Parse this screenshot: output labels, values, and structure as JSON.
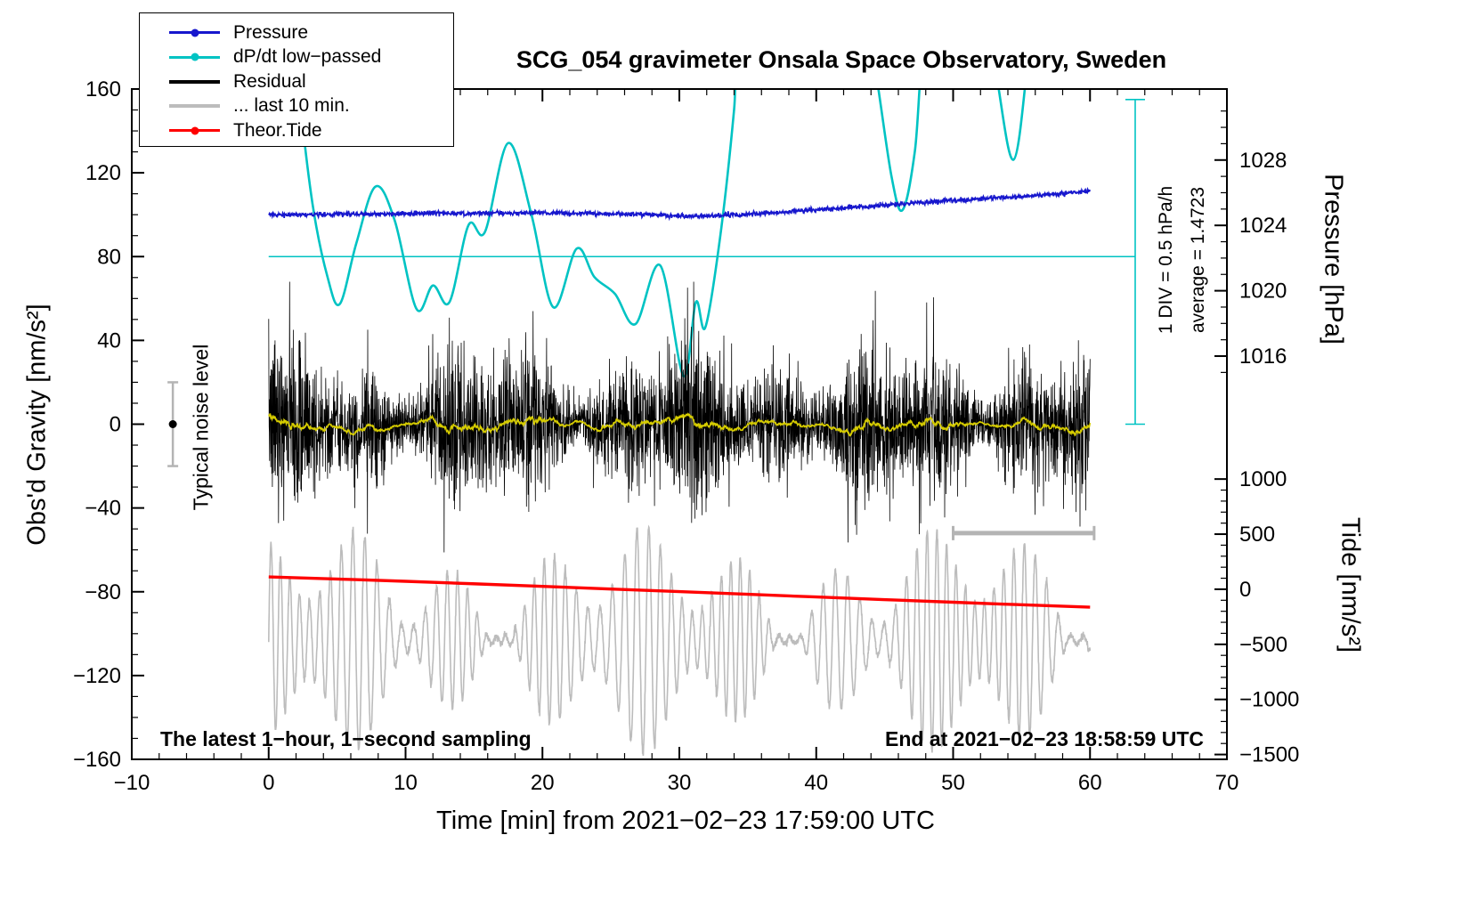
{
  "title": "SCG_054 gravimeter Onsala Space Observatory, Sweden",
  "legend": {
    "items": [
      {
        "label": "Pressure",
        "color": "#1717cd",
        "style": "line-dot"
      },
      {
        "label": "dP/dt low−passed",
        "color": "#00c3c3",
        "style": "line-dot"
      },
      {
        "label": "Residual",
        "color": "#000000",
        "style": "line"
      },
      {
        "label": "... last 10 min.",
        "color": "#bcbcbc",
        "style": "line"
      },
      {
        "label": "Theor.Tide",
        "color": "#ff0000",
        "style": "line-dot"
      }
    ]
  },
  "axes": {
    "x": {
      "label": "Time [min] from 2021−02−23 17:59:00 UTC",
      "min": -10,
      "max": 70,
      "major_ticks": [
        -10,
        0,
        10,
        20,
        30,
        40,
        50,
        60,
        70
      ],
      "minor_step": 2
    },
    "gravity": {
      "label": "Obs'd Gravity [nm/s²]",
      "min": -160,
      "max": 160,
      "major_ticks": [
        -160,
        -120,
        -80,
        -40,
        0,
        40,
        80,
        120,
        160
      ],
      "minor_step": 10
    },
    "pressure": {
      "label": "Pressure [hPa]",
      "major_ticks": [
        1016,
        1020,
        1024,
        1028
      ],
      "minor_step": 1,
      "gravity_at_1016": 32.5,
      "gravity_per_hpa": 7.8
    },
    "tide": {
      "label": "Tide [nm/s²]",
      "major_ticks": [
        -1500,
        -1000,
        -500,
        0,
        500,
        1000
      ],
      "minor_step": 100,
      "gravity_at_zero": -78.8,
      "gravity_per_unit": 0.0526
    }
  },
  "annotations": {
    "sampling_note": "The latest 1−hour, 1−second sampling",
    "end_note": "End at 2021−02−23 18:58:59 UTC",
    "noise_label": "Typical noise level",
    "div_label": "1 DIV = 0.5 hPa/h",
    "average_label": "average = 1.4723"
  },
  "chart_data": {
    "type": "line",
    "title": "SCG_054 gravimeter Onsala Space Observatory, Sweden",
    "xlabel": "Time [min] from 2021−02−23 17:59:00 UTC",
    "x_range": [
      -10,
      70
    ],
    "left_ylabel": "Obs'd Gravity [nm/s²]",
    "left_ylim": [
      -160,
      160
    ],
    "right_pressure_ticks_hPa": [
      1016,
      1020,
      1024,
      1028
    ],
    "right_tide_ticks": [
      -1500,
      -1000,
      -500,
      0,
      500,
      1000
    ],
    "series": [
      {
        "name": "Pressure",
        "axis": "pressure_hPa",
        "color": "#1717cd",
        "jitter": 0.55,
        "x": [
          0,
          4,
          8,
          12,
          16,
          20,
          23,
          26,
          28.5,
          30.5,
          32.5,
          34.5,
          37,
          40,
          44,
          48,
          52,
          55,
          58,
          60
        ],
        "y": [
          1024.66,
          1024.68,
          1024.71,
          1024.73,
          1024.75,
          1024.77,
          1024.74,
          1024.68,
          1024.62,
          1024.57,
          1024.58,
          1024.66,
          1024.78,
          1024.95,
          1025.18,
          1025.42,
          1025.62,
          1025.76,
          1025.95,
          1026.08
        ]
      },
      {
        "name": "dP/dt low−passed",
        "axis": "hPa_per_h",
        "color": "#00c3c3",
        "average": 1.4723,
        "div_value": 0.5,
        "div_gravity_units": 40,
        "reference_gravity": 80,
        "x": [
          1.2,
          2.2,
          3.2,
          4.3,
          5.2,
          6.4,
          7.8,
          9.2,
          10.8,
          12,
          13.2,
          14.6,
          15.8,
          17.5,
          19.2,
          20.8,
          22.5,
          23.8,
          25.3,
          26.8,
          28.6,
          30.3,
          31.2,
          31.9,
          33,
          34,
          35,
          42.5,
          44.3,
          45.5,
          46.3,
          47.2,
          48.3,
          51.8,
          53.2,
          54.4,
          55.4,
          56.3,
          60
        ],
        "y": [
          3.35,
          2.47,
          1.79,
          1.35,
          1.19,
          1.55,
          1.89,
          1.69,
          1.16,
          1.3,
          1.2,
          1.66,
          1.62,
          2.15,
          1.72,
          1.17,
          1.52,
          1.35,
          1.25,
          1.07,
          1.42,
          0.76,
          1.2,
          1.05,
          1.6,
          2.35,
          3.35,
          3.47,
          2.6,
          1.95,
          1.75,
          2.1,
          2.97,
          3.35,
          2.54,
          2.05,
          2.6,
          3.47,
          3.72
        ]
      },
      {
        "name": "Residual",
        "axis": "gravity",
        "color": "#000000",
        "sampling_s": 1,
        "duration_min": 60,
        "mean": 0,
        "typical_std": 15,
        "max_excursion": 65,
        "seed": 7
      },
      {
        "name": "Residual low−passed",
        "axis": "gravity",
        "color": "#d6cc00",
        "smoothing_window_s": 71
      },
      {
        "name": "... last 10 min.",
        "axis": "gravity",
        "color": "#bcbcbc",
        "center": -103,
        "max_amplitude": 55,
        "quasi_period_min": 0.78,
        "seed": 11
      },
      {
        "name": "Theor.Tide",
        "axis": "tide",
        "color": "#ff0000",
        "x": [
          0,
          10,
          20,
          30,
          40,
          50,
          60
        ],
        "y": [
          112,
          72,
          26,
          -22,
          -70,
          -118,
          -163
        ]
      }
    ],
    "dpdt_reference": {
      "gravity": 80,
      "x_start": 0,
      "x_end": 63.3,
      "bracket_x": 63.3,
      "bracket_gravity_range": [
        0,
        155
      ]
    },
    "last10_interval_bar": {
      "x1": 50,
      "x2": 60.3,
      "gravity": -52
    },
    "typical_noise": {
      "x": -7,
      "value": 0,
      "error": 20
    }
  }
}
